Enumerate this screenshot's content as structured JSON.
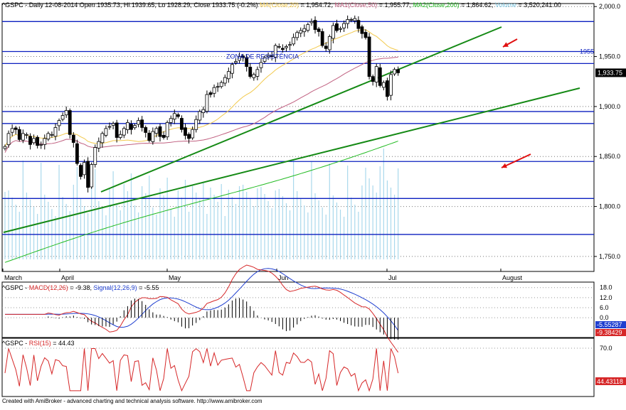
{
  "price_panel": {
    "symbol": "^GSPC",
    "header_parts": [
      {
        "text": "^GSPC - Daily 12-08-2014 Open 1935.73, Hi 1939.65, Lo 1928.29, Close 1933.75 (-0.2%) ",
        "color": "#000000"
      },
      {
        "text": "MA(Close,20)",
        "color": "#f2c94c"
      },
      {
        "text": " = 1,954.72, ",
        "color": "#000000"
      },
      {
        "text": "MA1(Close,50)",
        "color": "#c06080"
      },
      {
        "text": " = 1,955.77, ",
        "color": "#000000"
      },
      {
        "text": "MA2(Close,200)",
        "color": "#22bb22"
      },
      {
        "text": " = 1,864.62, ",
        "color": "#000000"
      },
      {
        "text": "Volume",
        "color": "#7ec8e3"
      },
      {
        "text": " = 3,520,241.00",
        "color": "#000000"
      }
    ],
    "resistance_label": "ZONA DE RESISTÊNCIA",
    "level_label": "1955",
    "last_close_label": "1,933.75"
  },
  "macd_panel": {
    "header_parts": [
      {
        "text": "^GSPC - ",
        "color": "#000000"
      },
      {
        "text": "MACD(12,26)",
        "color": "#d62728"
      },
      {
        "text": " = -9.38, ",
        "color": "#000000"
      },
      {
        "text": "Signal(12,26,9)",
        "color": "#1f3fd0"
      },
      {
        "text": " = -5.55",
        "color": "#000000"
      }
    ],
    "signal_tag": "-5.55287",
    "macd_tag": "-9.38429"
  },
  "rsi_panel": {
    "header_parts": [
      {
        "text": "^GSPC - ",
        "color": "#000000"
      },
      {
        "text": "RSI(15)",
        "color": "#d62728"
      },
      {
        "text": " = 44.43",
        "color": "#000000"
      }
    ],
    "rsi_tag": "44.43118"
  },
  "footer": "Created with AmiBroker - advanced charting and technical analysis software. http://www.amibroker.com",
  "chart_data": [
    {
      "type": "candlestick",
      "title": "^GSPC - Daily 12-08-2014",
      "x_ticks": [
        "March",
        "April",
        "May",
        "Jun",
        "Jul",
        "August"
      ],
      "y_ticks": [
        "1,750.0",
        "1,800.0",
        "1,850.0",
        "1,900.0",
        "1,950.0",
        "2,000.0"
      ],
      "ylim": [
        1735,
        2003
      ],
      "ohlc_close_estimates": [
        1860,
        1873,
        1878,
        1877,
        1867,
        1873,
        1872,
        1862,
        1868,
        1861,
        1862,
        1868,
        1873,
        1872,
        1879,
        1886,
        1891,
        1896,
        1872,
        1864,
        1843,
        1830,
        1844,
        1819,
        1842,
        1859,
        1865,
        1873,
        1878,
        1880,
        1883,
        1869,
        1872,
        1878,
        1884,
        1877,
        1881,
        1886,
        1879,
        1874,
        1866,
        1875,
        1878,
        1870,
        1869,
        1884,
        1888,
        1893,
        1890,
        1877,
        1871,
        1868,
        1877,
        1887,
        1895,
        1897,
        1912,
        1912,
        1919,
        1920,
        1924,
        1929,
        1935,
        1942,
        1945,
        1950,
        1949,
        1940,
        1930,
        1932,
        1937,
        1944,
        1949,
        1951,
        1950,
        1961,
        1960,
        1957,
        1960,
        1962,
        1969,
        1974,
        1976,
        1978,
        1982,
        1985,
        1977,
        1975,
        1961,
        1958,
        1970,
        1981,
        1976,
        1978,
        1983,
        1987,
        1987,
        1988,
        1978,
        1973,
        1969,
        1930,
        1925,
        1940,
        1921,
        1924,
        1910,
        1932,
        1937,
        1933.75
      ],
      "horizontal_levels": [
        1985,
        1955,
        1943,
        1895,
        1883,
        1845,
        1808,
        1772
      ],
      "annotations": [
        "ZONA DE RESISTÊNCIA",
        "1955"
      ]
    },
    {
      "type": "line",
      "title": "MACD(12,26) / Signal(12,26,9)",
      "y_ticks": [
        "18.0",
        "12.0",
        "6.0",
        "0.0"
      ],
      "ylim": [
        -11,
        20
      ],
      "series": [
        {
          "name": "MACD(12,26)",
          "last": -9.38
        },
        {
          "name": "Signal(12,26,9)",
          "last": -5.55
        }
      ]
    },
    {
      "type": "line",
      "title": "RSI(15)",
      "y_ticks": [
        "70.0"
      ],
      "series": [
        {
          "name": "RSI(15)",
          "last": 44.43
        }
      ]
    }
  ]
}
